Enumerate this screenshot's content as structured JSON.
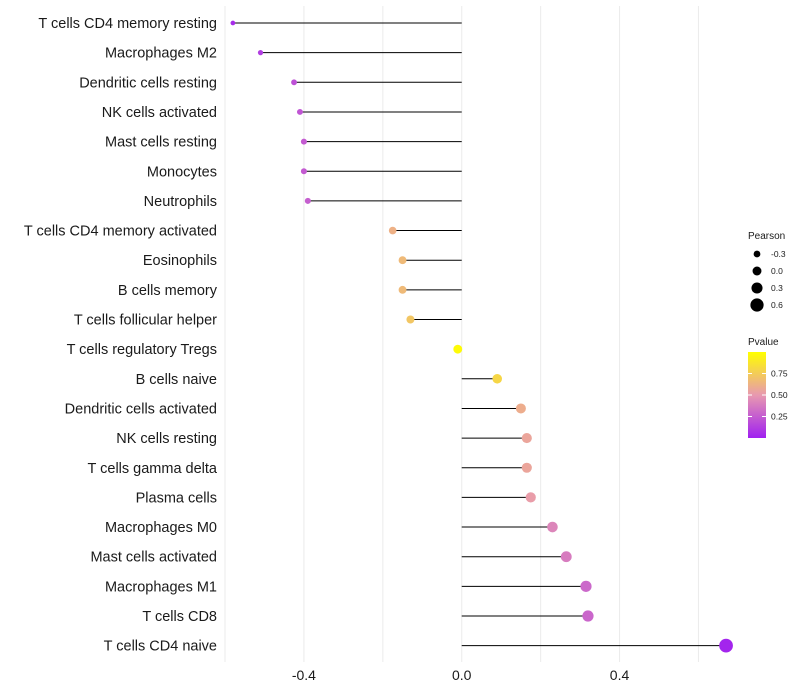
{
  "chart_data": {
    "type": "lollipop",
    "title": "",
    "xlabel": "",
    "ylabel": "",
    "xlim": [
      -0.6,
      0.68
    ],
    "x_ticks": [
      -0.4,
      0.0,
      0.4
    ],
    "x_tick_labels": [
      "-0.4",
      "0.0",
      "0.4"
    ],
    "grid": true,
    "categories": [
      "T cells CD4 memory resting",
      "Macrophages M2",
      "Dendritic cells resting",
      "NK cells activated",
      "Mast cells resting",
      "Monocytes",
      "Neutrophils",
      "T cells CD4 memory activated",
      "Eosinophils",
      "B cells memory",
      "T cells follicular helper",
      "T cells regulatory  Tregs",
      "B cells naive",
      "Dendritic cells activated",
      "NK cells resting",
      "T cells gamma delta",
      "Plasma cells",
      "Macrophages M0",
      "Mast cells activated",
      "Macrophages M1",
      "T cells CD8",
      "T cells CD4 naive"
    ],
    "pearson": [
      -0.58,
      -0.51,
      -0.425,
      -0.41,
      -0.4,
      -0.4,
      -0.39,
      -0.175,
      -0.15,
      -0.15,
      -0.13,
      -0.01,
      0.09,
      0.15,
      0.165,
      0.165,
      0.175,
      0.23,
      0.265,
      0.315,
      0.32,
      0.67
    ],
    "pvalue": [
      0.05,
      0.12,
      0.2,
      0.22,
      0.24,
      0.24,
      0.26,
      0.62,
      0.66,
      0.66,
      0.72,
      0.98,
      0.8,
      0.6,
      0.56,
      0.56,
      0.52,
      0.42,
      0.38,
      0.3,
      0.29,
      0.02
    ],
    "legend_size": {
      "title": "Pearson",
      "values": [
        -0.3,
        0.0,
        0.3,
        0.6
      ],
      "labels": [
        "-0.3",
        "0.0",
        "0.3",
        "0.6"
      ]
    },
    "legend_color": {
      "title": "Pvalue",
      "ticks": [
        0.25,
        0.5,
        0.75
      ],
      "tick_labels": [
        "0.25",
        "0.50",
        "0.75"
      ],
      "range": [
        0.0,
        1.0
      ],
      "low_color": "#a020f0",
      "mid_color": "#e899b0",
      "high_color": "#ffff00"
    },
    "colors": {
      "stem": "#000000",
      "grid": "#ebebeb",
      "text": "#1a1a1a"
    }
  }
}
